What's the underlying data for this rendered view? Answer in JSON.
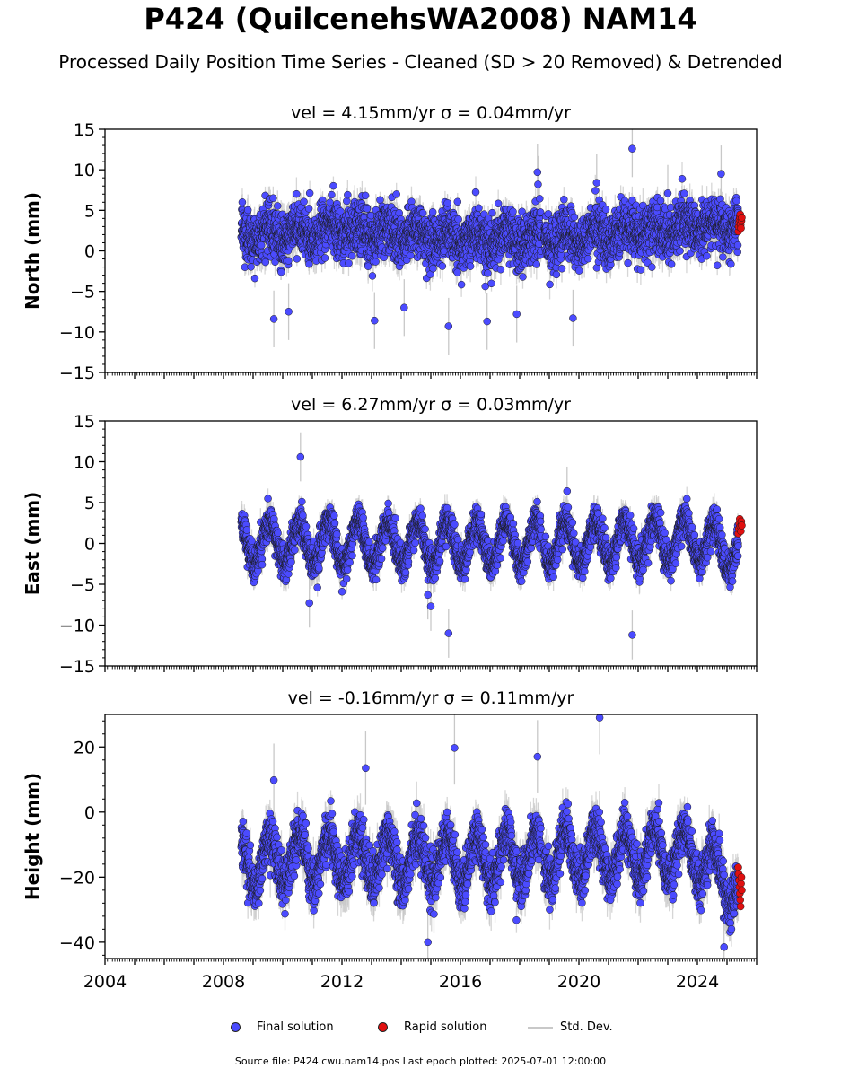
{
  "figure": {
    "title": "P424 (QuilcenehsWA2008) NAM14",
    "subtitle": "Processed Daily Position Time Series - Cleaned (SD > 20 Removed) & Detrended",
    "source_line": "Source file: P424.cwu.nam14.pos  Last epoch plotted: 2025-07-01 12:00:00"
  },
  "legend": {
    "final_label": "Final solution",
    "rapid_label": "Rapid solution",
    "sd_label": "Std. Dev."
  },
  "colors": {
    "final": "#4b4bff",
    "rapid": "#e01010",
    "std_dev": "#c8c8c8",
    "marker_edge": "#1a1a1a"
  },
  "chart_data": [
    {
      "type": "scatter",
      "panel": "north",
      "title": "vel = 4.15mm/yr   σ = 0.04mm/yr",
      "ylabel": "North (mm)",
      "xlim": [
        2004.0,
        2026.0
      ],
      "ylim": [
        -15,
        15
      ],
      "yticks": [
        -15,
        -10,
        -5,
        0,
        5,
        10,
        15
      ],
      "xticks": [
        "2004",
        "2008",
        "2012",
        "2016",
        "2020",
        "2024"
      ],
      "show_xticklabels": false,
      "series": [
        {
          "name": "Final solution",
          "kind": "final",
          "start": 2008.6,
          "end": 2025.38,
          "typical_sd": 1.4,
          "trend": [
            [
              2008.6,
              2.0
            ],
            [
              2012.0,
              2.4
            ],
            [
              2016.0,
              1.5
            ],
            [
              2020.0,
              1.6
            ],
            [
              2024.0,
              3.0
            ],
            [
              2025.38,
              3.4
            ]
          ],
          "seasonal_amplitude": 0.8,
          "scatter_sd": 1.6,
          "outliers": [
            [
              2009.7,
              -8.4
            ],
            [
              2010.2,
              -7.5
            ],
            [
              2013.1,
              -8.6
            ],
            [
              2015.6,
              -9.3
            ],
            [
              2016.9,
              -8.7
            ],
            [
              2018.6,
              9.7
            ],
            [
              2018.62,
              8.2
            ],
            [
              2021.8,
              12.6
            ],
            [
              2020.6,
              8.4
            ],
            [
              2023.0,
              7.1
            ],
            [
              2024.8,
              9.5
            ],
            [
              2019.8,
              -8.3
            ],
            [
              2017.9,
              -7.8
            ],
            [
              2014.1,
              -7.0
            ]
          ]
        },
        {
          "name": "Rapid solution",
          "kind": "rapid",
          "start": 2025.38,
          "end": 2025.5,
          "values": [
            2.4,
            3.0,
            3.5,
            3.9,
            4.2,
            4.5,
            3.2,
            2.8,
            3.7,
            4.1
          ]
        }
      ]
    },
    {
      "type": "scatter",
      "panel": "east",
      "title": "vel = 6.27mm/yr   σ = 0.03mm/yr",
      "ylabel": "East (mm)",
      "xlim": [
        2004.0,
        2026.0
      ],
      "ylim": [
        -15,
        15
      ],
      "yticks": [
        -15,
        -10,
        -5,
        0,
        5,
        10,
        15
      ],
      "xticks": [
        "2004",
        "2008",
        "2012",
        "2016",
        "2020",
        "2024"
      ],
      "show_xticklabels": false,
      "series": [
        {
          "name": "Final solution",
          "kind": "final",
          "start": 2008.6,
          "end": 2025.38,
          "typical_sd": 1.2,
          "trend": [
            [
              2008.6,
              0.0
            ],
            [
              2012.0,
              0.0
            ],
            [
              2016.0,
              0.0
            ],
            [
              2020.0,
              0.0
            ],
            [
              2024.0,
              0.5
            ],
            [
              2025.38,
              -1.0
            ]
          ],
          "seasonal_amplitude": 2.6,
          "scatter_sd": 1.0,
          "outliers": [
            [
              2010.6,
              10.6
            ],
            [
              2015.6,
              -11.0
            ],
            [
              2021.8,
              -11.2
            ],
            [
              2015.0,
              -7.7
            ],
            [
              2019.6,
              6.4
            ],
            [
              2014.9,
              -6.3
            ],
            [
              2010.9,
              -7.3
            ]
          ]
        },
        {
          "name": "Rapid solution",
          "kind": "rapid",
          "start": 2025.38,
          "end": 2025.5,
          "values": [
            1.2,
            1.8,
            2.4,
            3.0,
            2.1,
            1.5,
            2.7,
            2.2
          ]
        }
      ]
    },
    {
      "type": "scatter",
      "panel": "height",
      "title": "vel = -0.16mm/yr   σ = 0.11mm/yr",
      "ylabel": "Height (mm)",
      "xlim": [
        2004.0,
        2026.0
      ],
      "ylim": [
        -45,
        30
      ],
      "yticks": [
        -40,
        -20,
        0,
        20
      ],
      "xticks": [
        "2004",
        "2008",
        "2012",
        "2016",
        "2020",
        "2024"
      ],
      "show_xticklabels": true,
      "series": [
        {
          "name": "Final solution",
          "kind": "final",
          "start": 2008.6,
          "end": 2025.38,
          "typical_sd": 4.5,
          "trend": [
            [
              2008.6,
              -15.0
            ],
            [
              2012.0,
              -14.0
            ],
            [
              2016.0,
              -15.0
            ],
            [
              2020.0,
              -13.0
            ],
            [
              2024.0,
              -13.0
            ],
            [
              2025.38,
              -24.0
            ]
          ],
          "seasonal_amplitude": 7.5,
          "scatter_sd": 3.5,
          "outliers": [
            [
              2015.8,
              19.7
            ],
            [
              2018.6,
              17.0
            ],
            [
              2020.7,
              29.0
            ],
            [
              2014.9,
              -40.0
            ],
            [
              2024.9,
              -41.5
            ],
            [
              2012.8,
              13.5
            ],
            [
              2009.7,
              9.8
            ]
          ]
        },
        {
          "name": "Rapid solution",
          "kind": "rapid",
          "start": 2025.38,
          "end": 2025.5,
          "values": [
            -17,
            -19,
            -21,
            -23,
            -25,
            -27,
            -29,
            -22,
            -20,
            -24
          ]
        }
      ]
    }
  ]
}
